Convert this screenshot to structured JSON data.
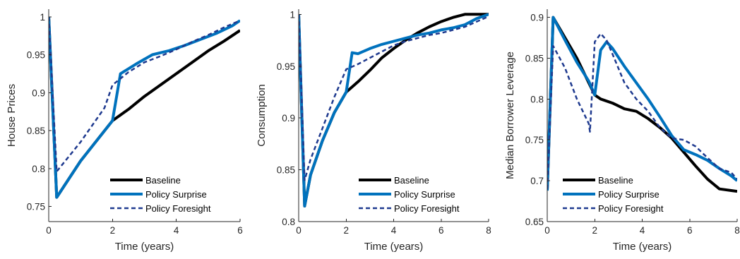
{
  "chart_data": [
    {
      "type": "line",
      "xlabel": "Time (years)",
      "ylabel": "House Prices",
      "xlim": [
        0,
        6
      ],
      "ylim": [
        0.73,
        1.01
      ],
      "xticks": [
        0,
        2,
        4,
        6
      ],
      "yticks": [
        0.75,
        0.8,
        0.85,
        0.9,
        0.95,
        1
      ],
      "ytick_labels": [
        "0.75",
        "0.8",
        "0.85",
        "0.9",
        "0.95",
        "1"
      ],
      "legend_position": "bottom-right",
      "series": [
        {
          "name": "Baseline",
          "color": "#000000",
          "style": "solid",
          "x": [
            0,
            0.25,
            1,
            2,
            2.5,
            3,
            3.5,
            4,
            4.5,
            5,
            5.5,
            6
          ],
          "y": [
            1.0,
            0.762,
            0.81,
            0.863,
            0.878,
            0.895,
            0.91,
            0.925,
            0.94,
            0.955,
            0.968,
            0.982
          ]
        },
        {
          "name": "Policy Surprise",
          "color": "#0072BD",
          "style": "solid",
          "x": [
            0,
            0.25,
            1,
            2,
            2.25,
            2.75,
            3.25,
            3.75,
            4.25,
            4.75,
            5.25,
            5.75,
            6
          ],
          "y": [
            1.0,
            0.762,
            0.81,
            0.863,
            0.925,
            0.938,
            0.95,
            0.955,
            0.962,
            0.97,
            0.978,
            0.988,
            0.995
          ]
        },
        {
          "name": "Policy Foresight",
          "color": "#1F3A8F",
          "style": "dashed",
          "x": [
            0,
            0.25,
            1,
            1.75,
            2,
            2.5,
            3,
            3.5,
            4,
            4.5,
            5,
            5.5,
            6
          ],
          "y": [
            1.0,
            0.796,
            0.835,
            0.88,
            0.91,
            0.927,
            0.94,
            0.948,
            0.957,
            0.967,
            0.976,
            0.986,
            0.995
          ]
        }
      ]
    },
    {
      "type": "line",
      "xlabel": "Time (years)",
      "ylabel": "Consumption",
      "xlim": [
        0,
        8
      ],
      "ylim": [
        0.8,
        1.005
      ],
      "xticks": [
        0,
        2,
        4,
        6,
        8
      ],
      "yticks": [
        0.8,
        0.85,
        0.9,
        0.95,
        1
      ],
      "ytick_labels": [
        "0.8",
        "0.85",
        "0.9",
        "0.95",
        "1"
      ],
      "legend_position": "bottom-right",
      "series": [
        {
          "name": "Baseline",
          "color": "#000000",
          "style": "solid",
          "x": [
            0,
            0.25,
            0.5,
            1,
            1.5,
            2,
            2.5,
            3,
            3.5,
            4,
            4.5,
            5,
            5.5,
            6,
            6.5,
            7,
            7.5,
            8
          ],
          "y": [
            1.0,
            0.815,
            0.845,
            0.878,
            0.905,
            0.925,
            0.935,
            0.946,
            0.958,
            0.967,
            0.975,
            0.982,
            0.988,
            0.993,
            0.997,
            1.0,
            1.0,
            1.0
          ]
        },
        {
          "name": "Policy Surprise",
          "color": "#0072BD",
          "style": "solid",
          "x": [
            0,
            0.25,
            0.5,
            1,
            1.5,
            2,
            2.25,
            2.5,
            3,
            3.5,
            4,
            4.5,
            5,
            5.5,
            6,
            6.5,
            7,
            7.5,
            8
          ],
          "y": [
            1.0,
            0.815,
            0.845,
            0.878,
            0.905,
            0.925,
            0.963,
            0.962,
            0.967,
            0.971,
            0.974,
            0.977,
            0.98,
            0.982,
            0.985,
            0.987,
            0.99,
            0.996,
            1.0
          ]
        },
        {
          "name": "Policy Foresight",
          "color": "#1F3A8F",
          "style": "dashed",
          "x": [
            0,
            0.25,
            0.5,
            1,
            1.5,
            2,
            2.5,
            3,
            3.5,
            4,
            4.5,
            5,
            5.5,
            6,
            6.5,
            7,
            7.5,
            8
          ],
          "y": [
            1.0,
            0.84,
            0.86,
            0.89,
            0.92,
            0.947,
            0.952,
            0.958,
            0.964,
            0.97,
            0.974,
            0.977,
            0.98,
            0.982,
            0.985,
            0.988,
            0.993,
            0.998
          ]
        }
      ]
    },
    {
      "type": "line",
      "xlabel": "Time (years)",
      "ylabel": "Median Borrower Leverage",
      "xlim": [
        0,
        8
      ],
      "ylim": [
        0.65,
        0.91
      ],
      "xticks": [
        0,
        2,
        4,
        6,
        8
      ],
      "yticks": [
        0.65,
        0.7,
        0.75,
        0.8,
        0.85,
        0.9
      ],
      "ytick_labels": [
        "0.65",
        "0.7",
        "0.75",
        "0.8",
        "0.85",
        "0.9"
      ],
      "legend_position": "bottom-left",
      "series": [
        {
          "name": "Baseline",
          "color": "#000000",
          "style": "solid",
          "x": [
            0,
            0.25,
            0.75,
            1.25,
            1.75,
            2,
            2.25,
            2.75,
            3.25,
            3.75,
            4.25,
            4.75,
            5.25,
            5.75,
            6.25,
            6.75,
            7.25,
            7.75,
            8
          ],
          "y": [
            0.688,
            0.9,
            0.875,
            0.85,
            0.82,
            0.805,
            0.8,
            0.795,
            0.788,
            0.785,
            0.776,
            0.765,
            0.752,
            0.735,
            0.718,
            0.702,
            0.69,
            0.688,
            0.687
          ]
        },
        {
          "name": "Policy Surprise",
          "color": "#0072BD",
          "style": "solid",
          "x": [
            0,
            0.25,
            0.75,
            1.25,
            1.75,
            2,
            2.25,
            2.5,
            2.75,
            3.25,
            3.75,
            4.25,
            4.75,
            5.25,
            5.75,
            6.25,
            6.75,
            7.25,
            7.75,
            8
          ],
          "y": [
            0.688,
            0.9,
            0.872,
            0.845,
            0.822,
            0.805,
            0.86,
            0.87,
            0.862,
            0.84,
            0.82,
            0.8,
            0.778,
            0.755,
            0.738,
            0.732,
            0.725,
            0.715,
            0.706,
            0.7
          ]
        },
        {
          "name": "Policy Foresight",
          "color": "#1F3A8F",
          "style": "dashed",
          "x": [
            0,
            0.25,
            0.75,
            1.25,
            1.75,
            1.8,
            2,
            2.25,
            2.5,
            2.75,
            3.25,
            3.75,
            4.25,
            4.75,
            5.25,
            5.75,
            6.25,
            6.75,
            7.25,
            7.75,
            8
          ],
          "y": [
            0.69,
            0.865,
            0.838,
            0.8,
            0.77,
            0.76,
            0.87,
            0.88,
            0.872,
            0.855,
            0.82,
            0.8,
            0.785,
            0.765,
            0.752,
            0.75,
            0.742,
            0.728,
            0.715,
            0.71,
            0.702
          ]
        }
      ]
    }
  ]
}
